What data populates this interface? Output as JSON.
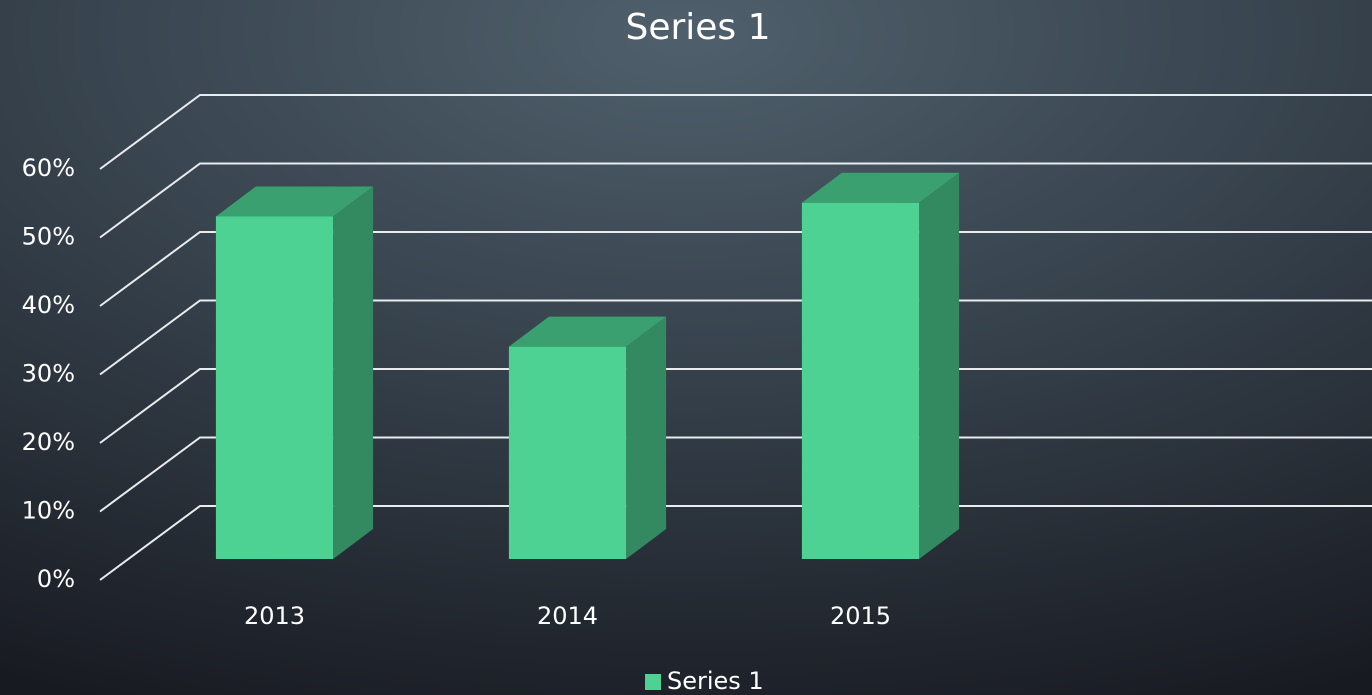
{
  "chart_data": {
    "type": "bar3d",
    "title": "Series 1",
    "categories": [
      "2013",
      "2014",
      "2015",
      null
    ],
    "series": [
      {
        "name": "Series 1",
        "color": "#4ed294",
        "values": [
          50,
          31,
          52,
          null
        ]
      }
    ],
    "ylim": [
      0,
      60
    ],
    "yticks": [
      {
        "value": 0,
        "label": "0%"
      },
      {
        "value": 10,
        "label": "10%"
      },
      {
        "value": 20,
        "label": "20%"
      },
      {
        "value": 30,
        "label": "30%"
      },
      {
        "value": 40,
        "label": "40%"
      },
      {
        "value": 50,
        "label": "50%"
      },
      {
        "value": 60,
        "label": "60%"
      }
    ],
    "grid": true,
    "legend": "bottom"
  }
}
